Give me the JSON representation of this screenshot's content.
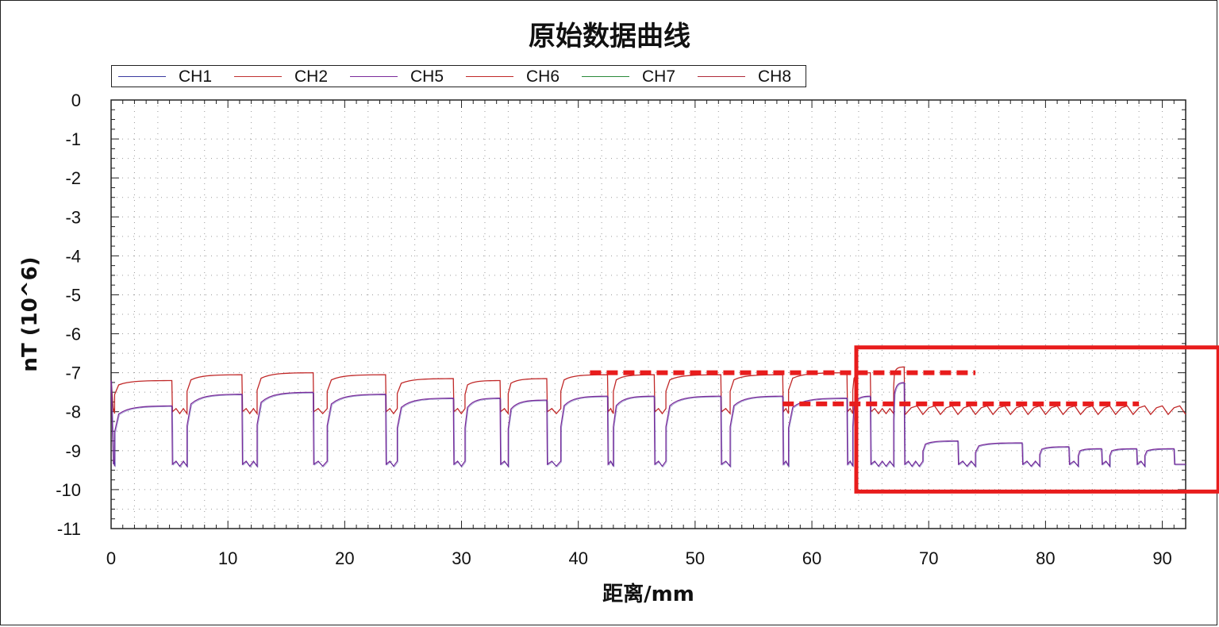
{
  "chart_data": {
    "type": "line",
    "title": "原始数据曲线",
    "xlabel": "距离/mm",
    "ylabel": "nT (10^6)",
    "xlim": [
      0,
      92
    ],
    "ylim": [
      -11,
      0
    ],
    "x_ticks": [
      0,
      10,
      20,
      30,
      40,
      50,
      60,
      70,
      80,
      90
    ],
    "y_ticks": [
      0,
      -1,
      -2,
      -3,
      -4,
      -5,
      -6,
      -7,
      -8,
      -9,
      -10,
      -11
    ],
    "grid": true,
    "legend_position": "top-left",
    "series": [
      {
        "name": "CH1",
        "color": "#3a3aa0"
      },
      {
        "name": "CH2",
        "color": "#c03030"
      },
      {
        "name": "CH5",
        "color": "#7a2a9a"
      },
      {
        "name": "CH6",
        "color": "#c02828"
      },
      {
        "name": "CH7",
        "color": "#2a8a3a"
      },
      {
        "name": "CH8",
        "color": "#b02a3a"
      }
    ],
    "upper_trace": {
      "color": "#c02828",
      "baseline": -8.0,
      "plateaus": [
        [
          0.3,
          5.2,
          -7.2
        ],
        [
          6.5,
          11.2,
          -7.05
        ],
        [
          12.5,
          17.3,
          -7.0
        ],
        [
          18.5,
          23.5,
          -7.05
        ],
        [
          24.5,
          29.3,
          -7.15
        ],
        [
          30.3,
          33.3,
          -7.2
        ],
        [
          34.0,
          37.3,
          -7.15
        ],
        [
          38.5,
          42.5,
          -7.05
        ],
        [
          43.0,
          46.5,
          -7.05
        ],
        [
          47.5,
          52.2,
          -7.05
        ],
        [
          53.0,
          57.5,
          -7.05
        ],
        [
          58.0,
          63.0,
          -7.0
        ],
        [
          63.5,
          65.0,
          -7.0
        ],
        [
          67.0,
          67.9,
          -6.85
        ]
      ],
      "tail": {
        "start": 68.0,
        "end": 92.0,
        "level": -7.95
      }
    },
    "lower_trace": {
      "color": "#7a2a9a",
      "baseline": -9.35,
      "plateaus": [
        [
          0.3,
          5.2,
          -7.85
        ],
        [
          6.5,
          11.2,
          -7.55
        ],
        [
          12.5,
          17.3,
          -7.5
        ],
        [
          18.5,
          23.5,
          -7.55
        ],
        [
          24.5,
          29.3,
          -7.65
        ],
        [
          30.3,
          33.3,
          -7.65
        ],
        [
          34.0,
          37.3,
          -7.7
        ],
        [
          38.5,
          42.5,
          -7.6
        ],
        [
          43.0,
          46.5,
          -7.6
        ],
        [
          47.5,
          52.2,
          -7.6
        ],
        [
          53.0,
          57.5,
          -7.6
        ],
        [
          58.0,
          63.0,
          -7.65
        ],
        [
          63.5,
          65.0,
          -7.6
        ],
        [
          67.0,
          67.9,
          -7.25
        ],
        [
          69.5,
          72.5,
          -8.75
        ],
        [
          74.0,
          78.0,
          -8.8
        ],
        [
          79.5,
          82.0,
          -8.9
        ],
        [
          82.8,
          84.8,
          -8.95
        ],
        [
          85.5,
          87.8,
          -8.95
        ],
        [
          88.5,
          91.0,
          -8.95
        ]
      ],
      "dips": [
        [
          37.5,
          38.5,
          -8.9
        ]
      ]
    },
    "annotations": {
      "dashed_lines": [
        {
          "x_start": 41,
          "x_end": 74,
          "y": -7.0,
          "color": "#e81c1c"
        },
        {
          "x_start": 57.5,
          "x_end": 88,
          "y": -7.8,
          "color": "#e81c1c"
        }
      ],
      "highlight_box": {
        "x_start": 63.8,
        "x_end": 94.8,
        "y_top": -6.35,
        "y_bottom": -10.05,
        "color": "#e81c1c"
      }
    }
  }
}
